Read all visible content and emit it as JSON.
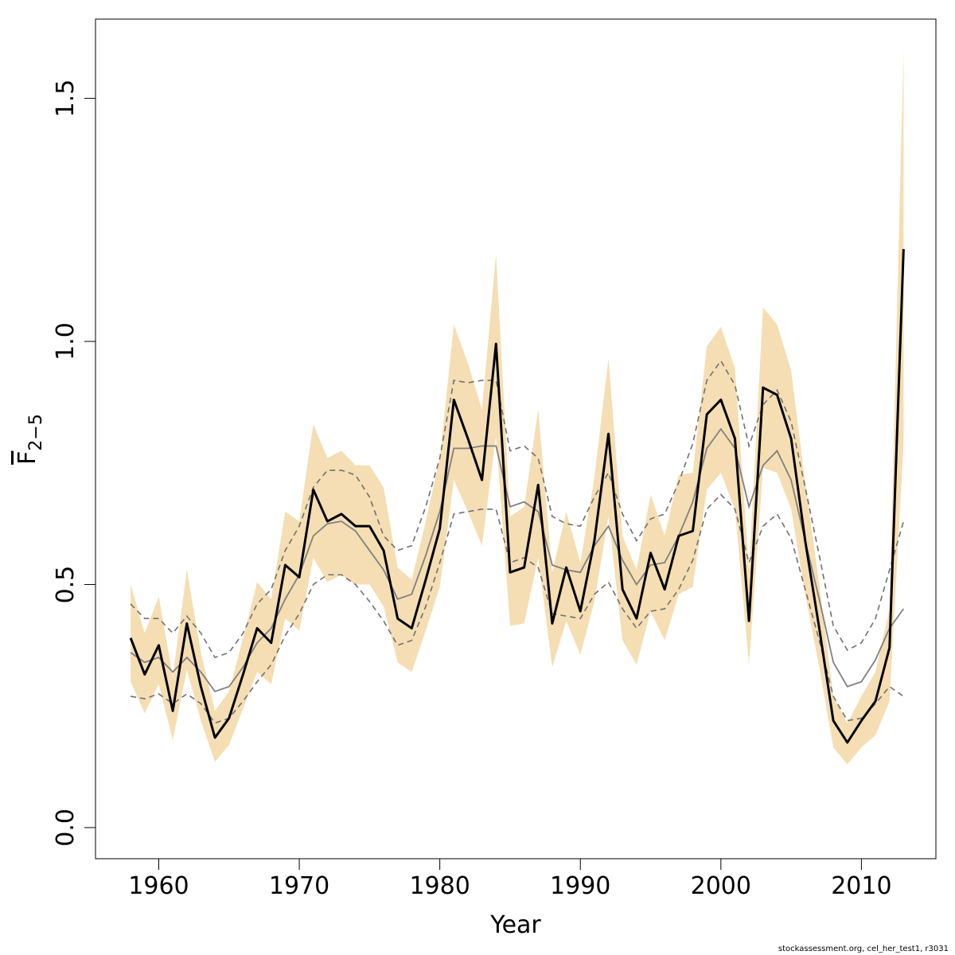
{
  "chart_data": {
    "type": "line",
    "xlabel": "Year",
    "ylabel_main": "F",
    "ylabel_sub": "2−5",
    "xlim": [
      1955.5,
      2015.3
    ],
    "ylim": [
      -0.064,
      1.663
    ],
    "xticks": [
      1960,
      1970,
      1980,
      1990,
      2000,
      2010
    ],
    "yticks": [
      0.0,
      0.5,
      1.0,
      1.5
    ],
    "ytick_labels": [
      "0.0",
      "0.5",
      "1.0",
      "1.5"
    ],
    "grid": false,
    "colors": {
      "band": "#f5deb3",
      "main": "#000000",
      "smooth": "#808080",
      "dashed": "#707070"
    },
    "x": [
      1958,
      1959,
      1960,
      1961,
      1962,
      1963,
      1964,
      1965,
      1966,
      1967,
      1968,
      1969,
      1970,
      1971,
      1972,
      1973,
      1974,
      1975,
      1976,
      1977,
      1978,
      1979,
      1980,
      1981,
      1982,
      1983,
      1984,
      1985,
      1986,
      1987,
      1988,
      1989,
      1990,
      1991,
      1992,
      1993,
      1994,
      1995,
      1996,
      1997,
      1998,
      1999,
      2000,
      2001,
      2002,
      2003,
      2004,
      2005,
      2006,
      2007,
      2008,
      2009,
      2010,
      2011,
      2012,
      2013
    ],
    "series": [
      {
        "role": "estimate",
        "values": [
          0.39,
          0.315,
          0.375,
          0.24,
          0.42,
          0.29,
          0.185,
          0.225,
          0.315,
          0.41,
          0.38,
          0.54,
          0.515,
          0.695,
          0.63,
          0.645,
          0.62,
          0.62,
          0.57,
          0.43,
          0.41,
          0.51,
          0.615,
          0.88,
          0.8,
          0.715,
          0.995,
          0.525,
          0.535,
          0.705,
          0.42,
          0.535,
          0.445,
          0.59,
          0.81,
          0.49,
          0.43,
          0.565,
          0.49,
          0.6,
          0.61,
          0.85,
          0.88,
          0.8,
          0.425,
          0.905,
          0.89,
          0.8,
          0.59,
          0.41,
          0.22,
          0.175,
          0.22,
          0.26,
          0.37,
          1.19
        ]
      },
      {
        "role": "ci_upper",
        "values": [
          0.5,
          0.4,
          0.475,
          0.31,
          0.53,
          0.36,
          0.24,
          0.28,
          0.39,
          0.505,
          0.47,
          0.65,
          0.63,
          0.83,
          0.76,
          0.775,
          0.745,
          0.745,
          0.7,
          0.535,
          0.51,
          0.63,
          0.76,
          1.035,
          0.955,
          0.86,
          1.18,
          0.64,
          0.66,
          0.86,
          0.525,
          0.65,
          0.545,
          0.72,
          0.965,
          0.6,
          0.53,
          0.685,
          0.6,
          0.725,
          0.73,
          0.99,
          1.03,
          0.945,
          0.53,
          1.07,
          1.035,
          0.94,
          0.71,
          0.5,
          0.27,
          0.215,
          0.27,
          0.32,
          0.45,
          1.6
        ]
      },
      {
        "role": "ci_lower",
        "values": [
          0.3,
          0.235,
          0.295,
          0.18,
          0.325,
          0.22,
          0.135,
          0.17,
          0.245,
          0.32,
          0.295,
          0.43,
          0.405,
          0.555,
          0.505,
          0.52,
          0.5,
          0.5,
          0.455,
          0.34,
          0.32,
          0.405,
          0.495,
          0.715,
          0.65,
          0.58,
          0.805,
          0.415,
          0.42,
          0.555,
          0.33,
          0.425,
          0.355,
          0.465,
          0.64,
          0.385,
          0.335,
          0.445,
          0.385,
          0.48,
          0.495,
          0.695,
          0.73,
          0.655,
          0.335,
          0.74,
          0.73,
          0.655,
          0.48,
          0.33,
          0.165,
          0.13,
          0.165,
          0.19,
          0.26,
          0.79
        ]
      },
      {
        "role": "smooth",
        "values": [
          0.36,
          0.34,
          0.35,
          0.32,
          0.35,
          0.32,
          0.28,
          0.29,
          0.33,
          0.38,
          0.41,
          0.47,
          0.52,
          0.6,
          0.625,
          0.63,
          0.61,
          0.57,
          0.53,
          0.47,
          0.48,
          0.56,
          0.65,
          0.78,
          0.78,
          0.785,
          0.785,
          0.66,
          0.67,
          0.65,
          0.54,
          0.53,
          0.525,
          0.58,
          0.62,
          0.55,
          0.5,
          0.54,
          0.545,
          0.6,
          0.67,
          0.78,
          0.82,
          0.78,
          0.66,
          0.745,
          0.775,
          0.715,
          0.59,
          0.47,
          0.34,
          0.29,
          0.3,
          0.345,
          0.41,
          0.45
        ]
      },
      {
        "role": "smooth_upper",
        "values": [
          0.46,
          0.43,
          0.43,
          0.4,
          0.435,
          0.4,
          0.35,
          0.36,
          0.4,
          0.46,
          0.49,
          0.57,
          0.62,
          0.7,
          0.735,
          0.735,
          0.725,
          0.68,
          0.6,
          0.57,
          0.58,
          0.66,
          0.76,
          0.92,
          0.915,
          0.92,
          0.92,
          0.775,
          0.785,
          0.76,
          0.64,
          0.625,
          0.62,
          0.68,
          0.73,
          0.645,
          0.59,
          0.635,
          0.645,
          0.71,
          0.79,
          0.92,
          0.96,
          0.91,
          0.785,
          0.87,
          0.9,
          0.835,
          0.7,
          0.56,
          0.415,
          0.365,
          0.38,
          0.43,
          0.53,
          0.63
        ]
      },
      {
        "role": "smooth_lower",
        "values": [
          0.27,
          0.265,
          0.275,
          0.255,
          0.275,
          0.255,
          0.215,
          0.225,
          0.26,
          0.3,
          0.335,
          0.395,
          0.44,
          0.5,
          0.52,
          0.52,
          0.5,
          0.465,
          0.425,
          0.375,
          0.385,
          0.455,
          0.545,
          0.645,
          0.65,
          0.655,
          0.655,
          0.545,
          0.555,
          0.535,
          0.44,
          0.435,
          0.43,
          0.48,
          0.505,
          0.45,
          0.41,
          0.445,
          0.45,
          0.49,
          0.55,
          0.655,
          0.685,
          0.655,
          0.545,
          0.62,
          0.645,
          0.595,
          0.49,
          0.385,
          0.27,
          0.22,
          0.225,
          0.255,
          0.29,
          0.27
        ]
      }
    ]
  },
  "footnote": "stockassessment.org, cel_her_test1, r3031"
}
